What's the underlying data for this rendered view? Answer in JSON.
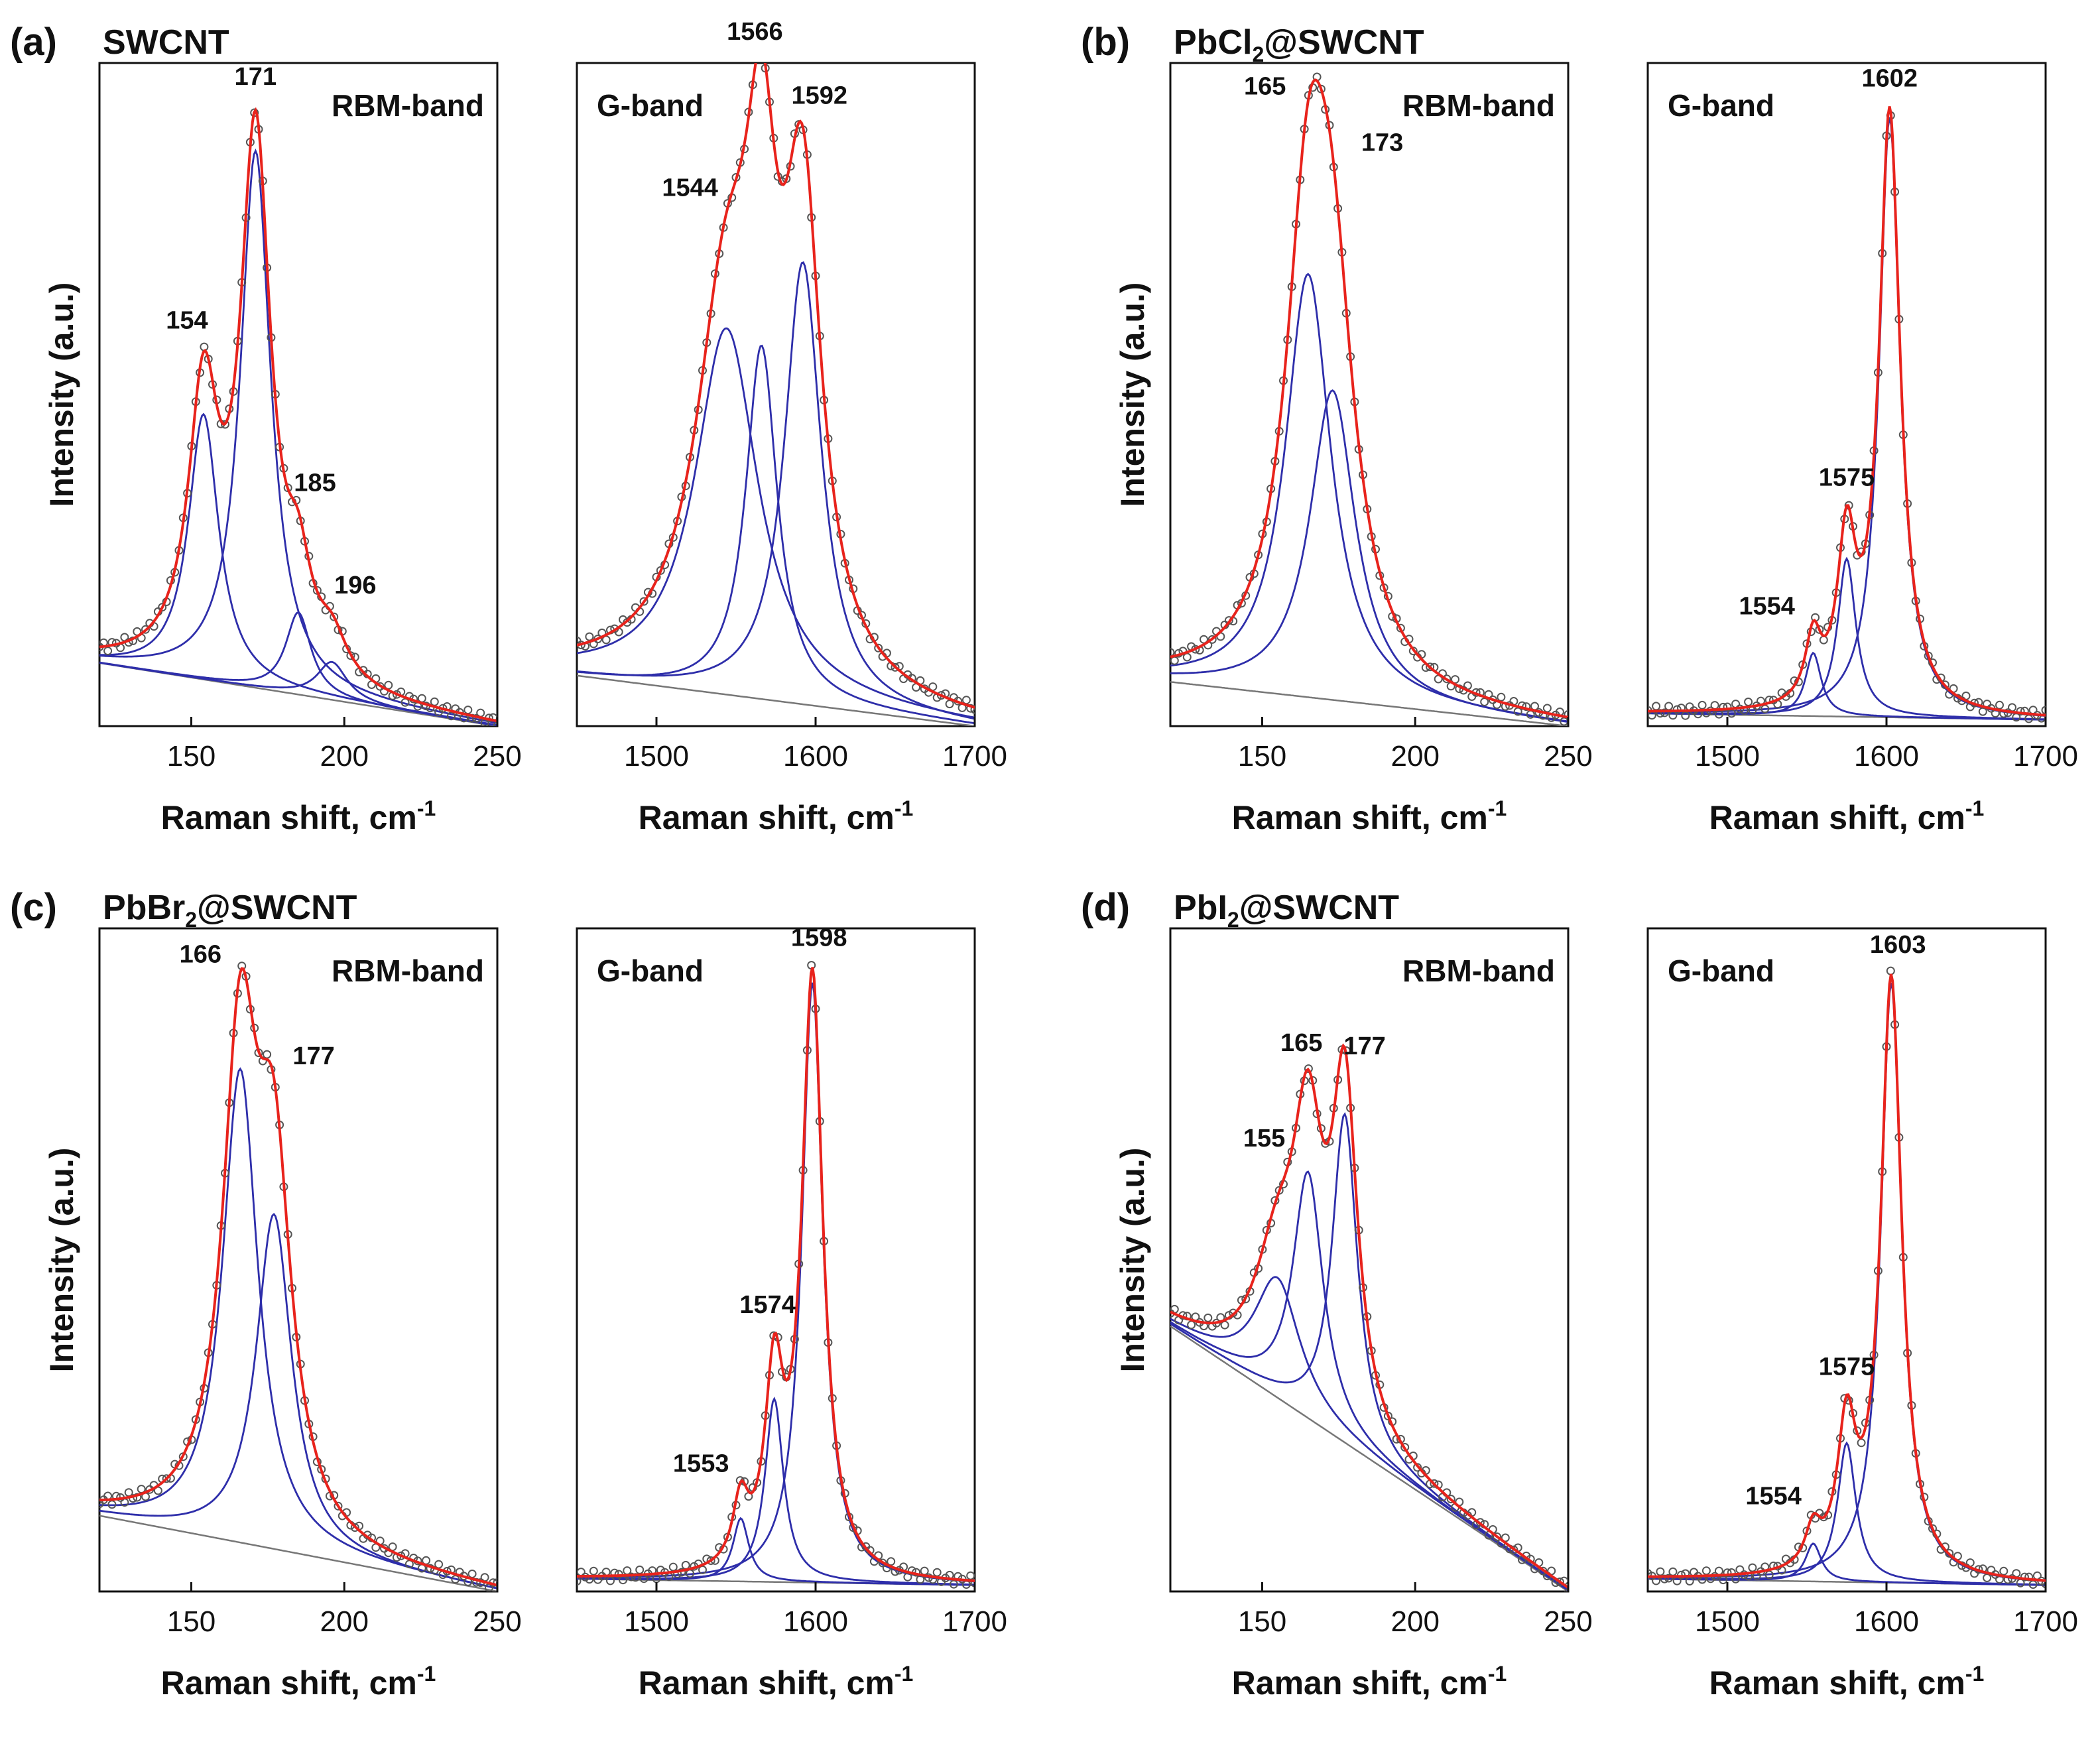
{
  "figure": {
    "x_label": "Raman shift, cm",
    "x_label_sup": "-1",
    "y_label": "Intensity (a.u.)"
  },
  "chart_data": [
    {
      "type": "line",
      "panel": "(a)",
      "sample": "SWCNT",
      "subplot": "RBM-band",
      "xlim": [
        120,
        250
      ],
      "xticks": [
        150,
        200,
        250
      ],
      "ylim": [
        0,
        1.05
      ],
      "baseline": [
        0.1,
        0.0
      ],
      "components": [
        {
          "center": 154,
          "height": 0.42,
          "width": 6
        },
        {
          "center": 171,
          "height": 0.85,
          "width": 6
        },
        {
          "center": 185,
          "height": 0.13,
          "width": 5
        },
        {
          "center": 196,
          "height": 0.06,
          "width": 6
        }
      ],
      "peak_labels": [
        {
          "text": "154",
          "x": 154
        },
        {
          "text": "171",
          "x": 171
        },
        {
          "text": "185",
          "x": 185
        },
        {
          "text": "196",
          "x": 196
        }
      ]
    },
    {
      "type": "line",
      "panel": "(a)",
      "subplot": "G-band",
      "xlim": [
        1450,
        1700
      ],
      "xticks": [
        1500,
        1600,
        1700
      ],
      "ylim": [
        0,
        1.05
      ],
      "baseline": [
        0.08,
        0.0
      ],
      "components": [
        {
          "center": 1544,
          "height": 0.58,
          "width": 24
        },
        {
          "center": 1566,
          "height": 0.56,
          "width": 12
        },
        {
          "center": 1592,
          "height": 0.7,
          "width": 14
        }
      ],
      "peak_labels": [
        {
          "text": "1544",
          "x": 1544
        },
        {
          "text": "1566",
          "x": 1566
        },
        {
          "text": "1592",
          "x": 1592
        }
      ]
    },
    {
      "type": "line",
      "panel": "(b)",
      "sample": "PbCl",
      "sample_sub": "2",
      "sample_rest": "@SWCNT",
      "subplot": "RBM-band",
      "xlim": [
        120,
        250
      ],
      "xticks": [
        150,
        200,
        250
      ],
      "ylim": [
        0,
        1.05
      ],
      "baseline": [
        0.07,
        0.0
      ],
      "components": [
        {
          "center": 165,
          "height": 0.67,
          "width": 9
        },
        {
          "center": 173,
          "height": 0.49,
          "width": 9
        }
      ],
      "peak_labels": [
        {
          "text": "165",
          "x": 165
        },
        {
          "text": "173",
          "x": 173
        }
      ]
    },
    {
      "type": "line",
      "panel": "(b)",
      "subplot": "G-band",
      "xlim": [
        1450,
        1700
      ],
      "xticks": [
        1500,
        1600,
        1700
      ],
      "ylim": [
        0,
        1.05
      ],
      "baseline": [
        0.02,
        0.01
      ],
      "components": [
        {
          "center": 1554,
          "height": 0.1,
          "width": 6
        },
        {
          "center": 1575,
          "height": 0.25,
          "width": 7
        },
        {
          "center": 1602,
          "height": 0.95,
          "width": 8
        }
      ],
      "peak_labels": [
        {
          "text": "1554",
          "x": 1554
        },
        {
          "text": "1575",
          "x": 1575
        },
        {
          "text": "1602",
          "x": 1602
        }
      ]
    },
    {
      "type": "line",
      "panel": "(c)",
      "sample": "PbBr",
      "sample_sub": "2",
      "sample_rest": "@SWCNT",
      "subplot": "RBM-band",
      "xlim": [
        120,
        250
      ],
      "xticks": [
        150,
        200,
        250
      ],
      "ylim": [
        0,
        1.05
      ],
      "baseline": [
        0.12,
        0.0
      ],
      "components": [
        {
          "center": 166,
          "height": 0.75,
          "width": 7
        },
        {
          "center": 177,
          "height": 0.53,
          "width": 7
        }
      ],
      "peak_labels": [
        {
          "text": "166",
          "x": 166
        },
        {
          "text": "177",
          "x": 177
        }
      ]
    },
    {
      "type": "line",
      "panel": "(c)",
      "subplot": "G-band",
      "xlim": [
        1450,
        1700
      ],
      "xticks": [
        1500,
        1600,
        1700
      ],
      "ylim": [
        0,
        1.05
      ],
      "baseline": [
        0.02,
        0.01
      ],
      "components": [
        {
          "center": 1553,
          "height": 0.1,
          "width": 6
        },
        {
          "center": 1574,
          "height": 0.29,
          "width": 7
        },
        {
          "center": 1598,
          "height": 0.95,
          "width": 8
        }
      ],
      "peak_labels": [
        {
          "text": "1553",
          "x": 1553
        },
        {
          "text": "1574",
          "x": 1574
        },
        {
          "text": "1598",
          "x": 1598
        }
      ]
    },
    {
      "type": "line",
      "panel": "(d)",
      "sample": "PbI",
      "sample_sub": "2",
      "sample_rest": "@SWCNT",
      "subplot": "RBM-band",
      "xlim": [
        120,
        250
      ],
      "xticks": [
        150,
        200,
        250
      ],
      "ylim": [
        0,
        1.05
      ],
      "baseline": [
        0.42,
        0.0
      ],
      "components": [
        {
          "center": 155,
          "height": 0.19,
          "width": 9
        },
        {
          "center": 165,
          "height": 0.39,
          "width": 6
        },
        {
          "center": 177,
          "height": 0.52,
          "width": 5
        }
      ],
      "peak_labels": [
        {
          "text": "155",
          "x": 155
        },
        {
          "text": "165",
          "x": 165
        },
        {
          "text": "177",
          "x": 177
        }
      ]
    },
    {
      "type": "line",
      "panel": "(d)",
      "subplot": "G-band",
      "xlim": [
        1450,
        1700
      ],
      "xticks": [
        1500,
        1600,
        1700
      ],
      "ylim": [
        0,
        1.05
      ],
      "baseline": [
        0.02,
        0.01
      ],
      "components": [
        {
          "center": 1554,
          "height": 0.06,
          "width": 6
        },
        {
          "center": 1575,
          "height": 0.22,
          "width": 7
        },
        {
          "center": 1603,
          "height": 0.95,
          "width": 8
        }
      ],
      "peak_labels": [
        {
          "text": "1554",
          "x": 1554
        },
        {
          "text": "1575",
          "x": 1575
        },
        {
          "text": "1603",
          "x": 1603
        }
      ]
    }
  ]
}
